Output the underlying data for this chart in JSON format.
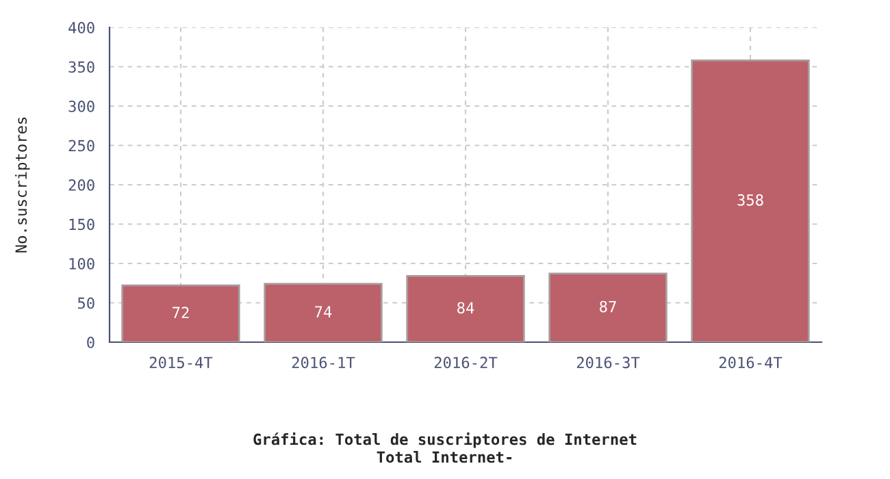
{
  "chart_data": {
    "type": "bar",
    "title": "Gráfica: Total de suscriptores de Internet",
    "subtitle": "Total Internet-",
    "ylabel": "No.suscriptores",
    "categories": [
      "2015-4T",
      "2016-1T",
      "2016-2T",
      "2016-3T",
      "2016-4T"
    ],
    "values": [
      72,
      74,
      84,
      87,
      358
    ],
    "color": "#bc606a",
    "data_labels": true,
    "ylim": [
      0,
      400
    ],
    "yticks": [
      0,
      50,
      100,
      150,
      200,
      250,
      300,
      350,
      400
    ],
    "grid": true
  }
}
